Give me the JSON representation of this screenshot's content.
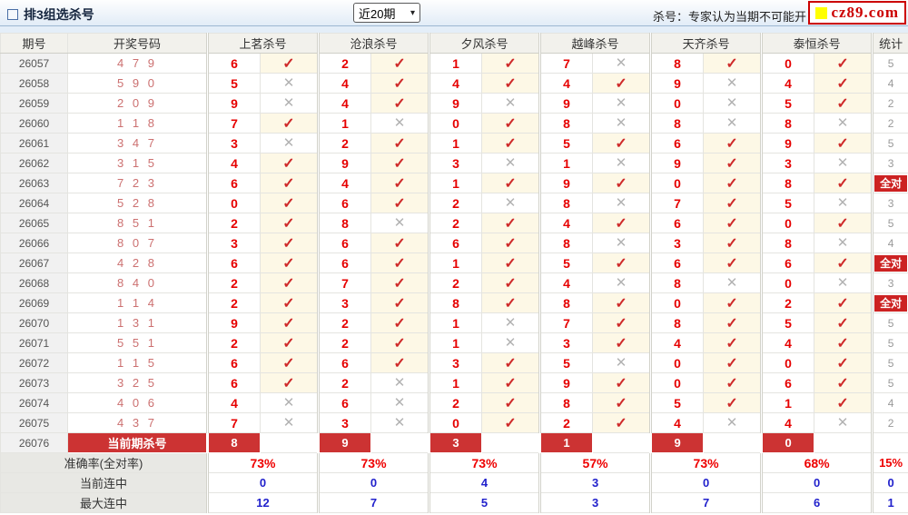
{
  "title_bar": {
    "title": "排3组选杀号",
    "period_select": "近20期",
    "note": "杀号：专家认为当期不可能开",
    "logo": "cz89.com"
  },
  "icons": {
    "check": "✓",
    "cross": "✕",
    "chevron": "▾"
  },
  "colors": {
    "accent_red": "#cc3333",
    "kill_red": "#e60000",
    "hit_bg": "#fdf8e6",
    "percent_red": "#ee0000",
    "streak_blue": "#2222cc",
    "logo_red": "#cc0000",
    "logo_yellow": "#ffff00"
  },
  "table": {
    "headers": [
      "期号",
      "开奖号码",
      "上茗杀号",
      "沧浪杀号",
      "夕风杀号",
      "越峰杀号",
      "天齐杀号",
      "泰恒杀号",
      "统计"
    ],
    "all_match_label": "全对",
    "rows": [
      {
        "period": "26057",
        "draw": "4 7 9",
        "kills": [
          [
            "6",
            1
          ],
          [
            "2",
            1
          ],
          [
            "1",
            1
          ],
          [
            "7",
            0
          ],
          [
            "8",
            1
          ],
          [
            "0",
            1
          ]
        ],
        "stat": "5"
      },
      {
        "period": "26058",
        "draw": "5 9 0",
        "kills": [
          [
            "5",
            0
          ],
          [
            "4",
            1
          ],
          [
            "4",
            1
          ],
          [
            "4",
            1
          ],
          [
            "9",
            0
          ],
          [
            "4",
            1
          ]
        ],
        "stat": "4"
      },
      {
        "period": "26059",
        "draw": "2 0 9",
        "kills": [
          [
            "9",
            0
          ],
          [
            "4",
            1
          ],
          [
            "9",
            0
          ],
          [
            "9",
            0
          ],
          [
            "0",
            0
          ],
          [
            "5",
            1
          ]
        ],
        "stat": "2"
      },
      {
        "period": "26060",
        "draw": "1 1 8",
        "kills": [
          [
            "7",
            1
          ],
          [
            "1",
            0
          ],
          [
            "0",
            1
          ],
          [
            "8",
            0
          ],
          [
            "8",
            0
          ],
          [
            "8",
            0
          ]
        ],
        "stat": "2"
      },
      {
        "period": "26061",
        "draw": "3 4 7",
        "kills": [
          [
            "3",
            0
          ],
          [
            "2",
            1
          ],
          [
            "1",
            1
          ],
          [
            "5",
            1
          ],
          [
            "6",
            1
          ],
          [
            "9",
            1
          ]
        ],
        "stat": "5"
      },
      {
        "period": "26062",
        "draw": "3 1 5",
        "kills": [
          [
            "4",
            1
          ],
          [
            "9",
            1
          ],
          [
            "3",
            0
          ],
          [
            "1",
            0
          ],
          [
            "9",
            1
          ],
          [
            "3",
            0
          ]
        ],
        "stat": "3"
      },
      {
        "period": "26063",
        "draw": "7 2 3",
        "kills": [
          [
            "6",
            1
          ],
          [
            "4",
            1
          ],
          [
            "1",
            1
          ],
          [
            "9",
            1
          ],
          [
            "0",
            1
          ],
          [
            "8",
            1
          ]
        ],
        "stat": "全对"
      },
      {
        "period": "26064",
        "draw": "5 2 8",
        "kills": [
          [
            "0",
            1
          ],
          [
            "6",
            1
          ],
          [
            "2",
            0
          ],
          [
            "8",
            0
          ],
          [
            "7",
            1
          ],
          [
            "5",
            0
          ]
        ],
        "stat": "3"
      },
      {
        "period": "26065",
        "draw": "8 5 1",
        "kills": [
          [
            "2",
            1
          ],
          [
            "8",
            0
          ],
          [
            "2",
            1
          ],
          [
            "4",
            1
          ],
          [
            "6",
            1
          ],
          [
            "0",
            1
          ]
        ],
        "stat": "5"
      },
      {
        "period": "26066",
        "draw": "8 0 7",
        "kills": [
          [
            "3",
            1
          ],
          [
            "6",
            1
          ],
          [
            "6",
            1
          ],
          [
            "8",
            0
          ],
          [
            "3",
            1
          ],
          [
            "8",
            0
          ]
        ],
        "stat": "4"
      },
      {
        "period": "26067",
        "draw": "4 2 8",
        "kills": [
          [
            "6",
            1
          ],
          [
            "6",
            1
          ],
          [
            "1",
            1
          ],
          [
            "5",
            1
          ],
          [
            "6",
            1
          ],
          [
            "6",
            1
          ]
        ],
        "stat": "全对"
      },
      {
        "period": "26068",
        "draw": "8 4 0",
        "kills": [
          [
            "2",
            1
          ],
          [
            "7",
            1
          ],
          [
            "2",
            1
          ],
          [
            "4",
            0
          ],
          [
            "8",
            0
          ],
          [
            "0",
            0
          ]
        ],
        "stat": "3"
      },
      {
        "period": "26069",
        "draw": "1 1 4",
        "kills": [
          [
            "2",
            1
          ],
          [
            "3",
            1
          ],
          [
            "8",
            1
          ],
          [
            "8",
            1
          ],
          [
            "0",
            1
          ],
          [
            "2",
            1
          ]
        ],
        "stat": "全对"
      },
      {
        "period": "26070",
        "draw": "1 3 1",
        "kills": [
          [
            "9",
            1
          ],
          [
            "2",
            1
          ],
          [
            "1",
            0
          ],
          [
            "7",
            1
          ],
          [
            "8",
            1
          ],
          [
            "5",
            1
          ]
        ],
        "stat": "5"
      },
      {
        "period": "26071",
        "draw": "5 5 1",
        "kills": [
          [
            "2",
            1
          ],
          [
            "2",
            1
          ],
          [
            "1",
            0
          ],
          [
            "3",
            1
          ],
          [
            "4",
            1
          ],
          [
            "4",
            1
          ]
        ],
        "stat": "5"
      },
      {
        "period": "26072",
        "draw": "1 1 5",
        "kills": [
          [
            "6",
            1
          ],
          [
            "6",
            1
          ],
          [
            "3",
            1
          ],
          [
            "5",
            0
          ],
          [
            "0",
            1
          ],
          [
            "0",
            1
          ]
        ],
        "stat": "5"
      },
      {
        "period": "26073",
        "draw": "3 2 5",
        "kills": [
          [
            "6",
            1
          ],
          [
            "2",
            0
          ],
          [
            "1",
            1
          ],
          [
            "9",
            1
          ],
          [
            "0",
            1
          ],
          [
            "6",
            1
          ]
        ],
        "stat": "5"
      },
      {
        "period": "26074",
        "draw": "4 0 6",
        "kills": [
          [
            "4",
            0
          ],
          [
            "6",
            0
          ],
          [
            "2",
            1
          ],
          [
            "8",
            1
          ],
          [
            "5",
            1
          ],
          [
            "1",
            1
          ]
        ],
        "stat": "4"
      },
      {
        "period": "26075",
        "draw": "4 3 7",
        "kills": [
          [
            "7",
            0
          ],
          [
            "3",
            0
          ],
          [
            "0",
            1
          ],
          [
            "2",
            1
          ],
          [
            "4",
            0
          ],
          [
            "4",
            0
          ]
        ],
        "stat": "2"
      }
    ],
    "current_row": {
      "period": "26076",
      "label": "当前期杀号",
      "kills": [
        "8",
        "9",
        "3",
        "1",
        "9",
        "0"
      ],
      "stat": ""
    },
    "summary": [
      {
        "label": "准确率(全对率)",
        "values": [
          "73%",
          "73%",
          "73%",
          "57%",
          "73%",
          "68%"
        ],
        "stat": "15%"
      },
      {
        "label": "当前连中",
        "values": [
          "0",
          "0",
          "4",
          "3",
          "0",
          "0"
        ],
        "stat": "0"
      },
      {
        "label": "最大连中",
        "values": [
          "12",
          "7",
          "5",
          "3",
          "7",
          "6"
        ],
        "stat": "1"
      }
    ]
  }
}
